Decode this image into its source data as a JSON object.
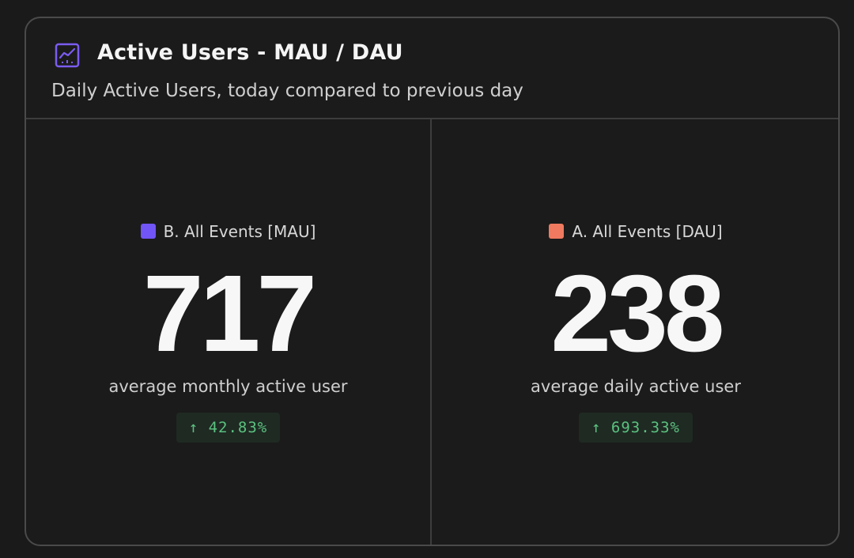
{
  "card": {
    "title": "Active Users - MAU / DAU",
    "subtitle": "Daily Active Users, today compared to previous day",
    "icon": "line-chart-icon"
  },
  "metrics": [
    {
      "legend": "B. All Events [MAU]",
      "color": "#7155f6",
      "value": "717",
      "caption": "average monthly active user",
      "change": "↑ 42.83%"
    },
    {
      "legend": "A. All Events [DAU]",
      "color": "#ef7a5f",
      "value": "238",
      "caption": "average daily active user",
      "change": "↑ 693.33%"
    }
  ],
  "colors": {
    "background": "#1a1a1a",
    "positive_change": "#5bc17f",
    "icon_accent": "#7a5cf0"
  }
}
